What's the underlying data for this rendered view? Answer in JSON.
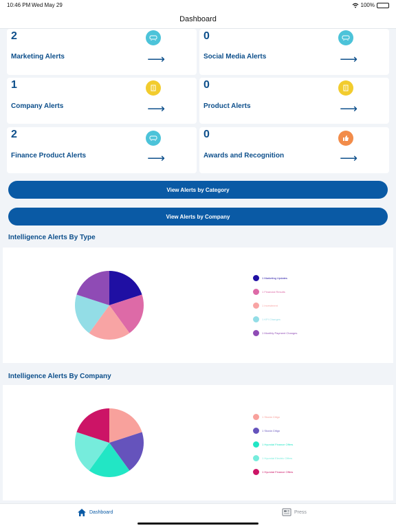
{
  "status_bar": {
    "time": "10:46 PM",
    "date": "Wed May 29",
    "battery": "100%"
  },
  "nav": {
    "title": "Dashboard"
  },
  "cards": [
    {
      "count": "2",
      "label": "Marketing Alerts",
      "icon": "megaphone-icon",
      "color": "#4cc3d9"
    },
    {
      "count": "0",
      "label": "Social Media Alerts",
      "icon": "megaphone-icon",
      "color": "#4cc3d9"
    },
    {
      "count": "1",
      "label": "Company Alerts",
      "icon": "building-icon",
      "color": "#f2cc2e"
    },
    {
      "count": "0",
      "label": "Product Alerts",
      "icon": "building-icon",
      "color": "#f2cc2e"
    },
    {
      "count": "2",
      "label": "Finance Product Alerts",
      "icon": "megaphone-icon",
      "color": "#4cc3d9"
    },
    {
      "count": "0",
      "label": "Awards and Recognition",
      "icon": "thumbs-up-icon",
      "color": "#f28c4a"
    }
  ],
  "buttons": {
    "by_category": "View Alerts by Category",
    "by_company": "View Alerts by Company"
  },
  "sections": {
    "by_type": "Intelligence Alerts By Type",
    "by_company": "Intelligence Alerts By Company"
  },
  "chart_data": [
    {
      "type": "pie",
      "title": "Intelligence Alerts By Type",
      "categories": [
        "1 Marketing Updates",
        "1 Financial Results",
        "1 Investment",
        "1 KPI Changes",
        "1 Monthly Payment Changes"
      ],
      "values": [
        1,
        1,
        1,
        1,
        1
      ],
      "colors": [
        "#1f0fa3",
        "#dd6aa7",
        "#f8a4a4",
        "#93dde6",
        "#8f4bb5"
      ],
      "legend_placement": "right"
    },
    {
      "type": "pie",
      "title": "Intelligence Alerts By Company",
      "categories": [
        "1 Skoda Citigo",
        "1 Skoda Citigo",
        "1 Hyundai Finance Offers",
        "1 Hyundai Electric Offers",
        "1 Hyundai Finance Offers"
      ],
      "values": [
        1,
        1,
        1,
        1,
        1
      ],
      "colors": [
        "#f8a19c",
        "#6553bc",
        "#22e6c5",
        "#76ecdc",
        "#cc1466"
      ],
      "legend_placement": "right"
    }
  ],
  "tabs": {
    "dashboard": "Dashboard",
    "press": "Press"
  },
  "colors": {
    "primary": "#0a5aa5",
    "text": "#0d4f8b",
    "background": "#f1f4f8"
  }
}
